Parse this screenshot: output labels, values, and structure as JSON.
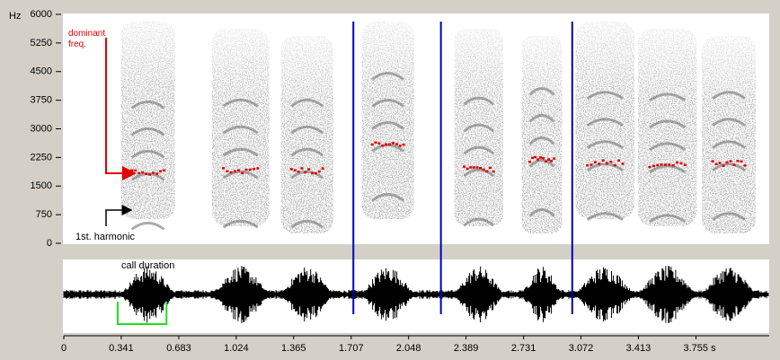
{
  "chart_data": {
    "type": "spectrogram",
    "y_unit": "Hz",
    "ylim": [
      0,
      6000
    ],
    "yticks": [
      0,
      750,
      1500,
      2250,
      3000,
      3750,
      4500,
      5250,
      6000
    ],
    "xlim": [
      0,
      4.19
    ],
    "xticks": [
      0,
      0.341,
      0.683,
      1.024,
      1.365,
      1.707,
      2.048,
      2.389,
      2.731,
      3.072,
      3.413,
      {
        "value": 3.755,
        "label": "3.755 s"
      }
    ],
    "calls": [
      {
        "start": 0.34,
        "end": 0.66,
        "dominant_hz": 1850
      },
      {
        "start": 0.88,
        "end": 1.22,
        "dominant_hz": 1900
      },
      {
        "start": 1.29,
        "end": 1.6,
        "dominant_hz": 1900
      },
      {
        "start": 1.77,
        "end": 2.08,
        "dominant_hz": 2600
      },
      {
        "start": 2.32,
        "end": 2.61,
        "dominant_hz": 1950
      },
      {
        "start": 2.72,
        "end": 2.96,
        "dominant_hz": 2200
      },
      {
        "start": 3.04,
        "end": 3.39,
        "dominant_hz": 2100
      },
      {
        "start": 3.41,
        "end": 3.76,
        "dominant_hz": 2050
      },
      {
        "start": 3.79,
        "end": 4.11,
        "dominant_hz": 2100
      }
    ],
    "markers": [
      1.72,
      2.24,
      3.02
    ],
    "call_duration": {
      "label": "call duration",
      "start": 0.32,
      "end": 0.61
    },
    "annotations": {
      "dominant": "dominant freq.",
      "harmonic": "1st. harmonic"
    }
  }
}
